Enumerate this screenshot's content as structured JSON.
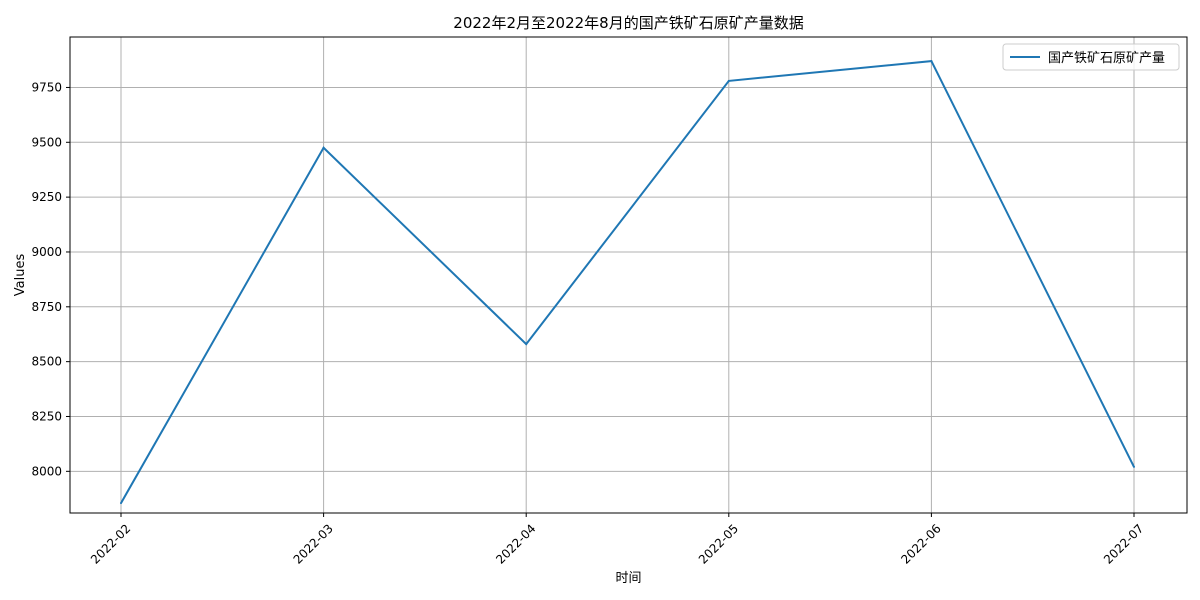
{
  "chart_data": {
    "type": "line",
    "title": "2022年2月至2022年8月的国产铁矿石原矿产量数据",
    "xlabel": "时间",
    "ylabel": "Values",
    "categories": [
      "2022-02",
      "2022-03",
      "2022-04",
      "2022-05",
      "2022-06",
      "2022-07"
    ],
    "yticks": [
      8000,
      8250,
      8500,
      8750,
      9000,
      9250,
      9500,
      9750
    ],
    "ylim": [
      7810,
      9980
    ],
    "grid": true,
    "legend_position": "top-right",
    "series": [
      {
        "name": "国产铁矿石原矿产量",
        "color": "#1f77b4",
        "values": [
          7855,
          9475,
          8580,
          9780,
          9870,
          8020
        ]
      }
    ]
  }
}
